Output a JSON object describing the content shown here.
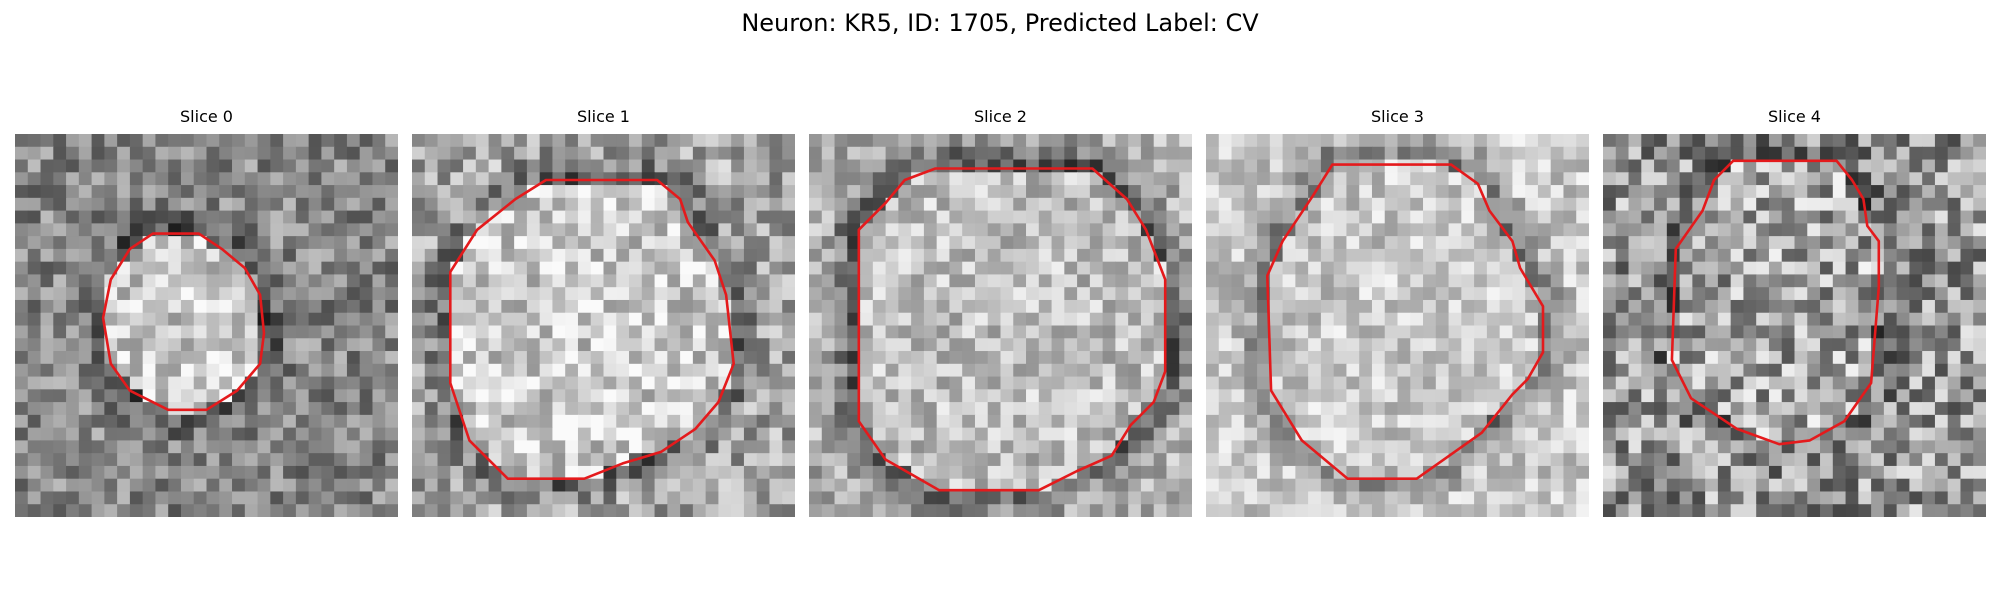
{
  "figure": {
    "title": "Neuron: KR5, ID: 1705, Predicted Label: CV"
  },
  "contour_color": "#e41a1c",
  "slices": [
    {
      "title": "Slice 0",
      "contour": [
        [
          0.36,
          0.26
        ],
        [
          0.48,
          0.26
        ],
        [
          0.54,
          0.3
        ],
        [
          0.6,
          0.35
        ],
        [
          0.64,
          0.42
        ],
        [
          0.65,
          0.52
        ],
        [
          0.64,
          0.6
        ],
        [
          0.58,
          0.67
        ],
        [
          0.5,
          0.72
        ],
        [
          0.4,
          0.72
        ],
        [
          0.3,
          0.67
        ],
        [
          0.25,
          0.6
        ],
        [
          0.23,
          0.48
        ],
        [
          0.25,
          0.38
        ],
        [
          0.3,
          0.3
        ]
      ]
    },
    {
      "title": "Slice 1",
      "contour": [
        [
          0.35,
          0.12
        ],
        [
          0.64,
          0.12
        ],
        [
          0.7,
          0.17
        ],
        [
          0.72,
          0.23
        ],
        [
          0.79,
          0.33
        ],
        [
          0.82,
          0.42
        ],
        [
          0.84,
          0.6
        ],
        [
          0.8,
          0.7
        ],
        [
          0.74,
          0.77
        ],
        [
          0.65,
          0.83
        ],
        [
          0.55,
          0.86
        ],
        [
          0.45,
          0.9
        ],
        [
          0.25,
          0.9
        ],
        [
          0.15,
          0.8
        ],
        [
          0.1,
          0.65
        ],
        [
          0.1,
          0.36
        ],
        [
          0.17,
          0.25
        ],
        [
          0.27,
          0.17
        ]
      ]
    },
    {
      "title": "Slice 2",
      "contour": [
        [
          0.33,
          0.09
        ],
        [
          0.74,
          0.09
        ],
        [
          0.83,
          0.17
        ],
        [
          0.88,
          0.25
        ],
        [
          0.93,
          0.38
        ],
        [
          0.93,
          0.62
        ],
        [
          0.9,
          0.7
        ],
        [
          0.84,
          0.76
        ],
        [
          0.79,
          0.84
        ],
        [
          0.7,
          0.88
        ],
        [
          0.6,
          0.93
        ],
        [
          0.34,
          0.93
        ],
        [
          0.2,
          0.85
        ],
        [
          0.13,
          0.75
        ],
        [
          0.13,
          0.25
        ],
        [
          0.2,
          0.18
        ],
        [
          0.25,
          0.12
        ]
      ]
    },
    {
      "title": "Slice 3",
      "contour": [
        [
          0.33,
          0.08
        ],
        [
          0.64,
          0.08
        ],
        [
          0.71,
          0.13
        ],
        [
          0.74,
          0.2
        ],
        [
          0.8,
          0.28
        ],
        [
          0.82,
          0.35
        ],
        [
          0.88,
          0.45
        ],
        [
          0.88,
          0.57
        ],
        [
          0.84,
          0.64
        ],
        [
          0.8,
          0.68
        ],
        [
          0.72,
          0.78
        ],
        [
          0.55,
          0.9
        ],
        [
          0.37,
          0.9
        ],
        [
          0.25,
          0.8
        ],
        [
          0.17,
          0.67
        ],
        [
          0.16,
          0.37
        ],
        [
          0.2,
          0.28
        ],
        [
          0.28,
          0.16
        ]
      ]
    },
    {
      "title": "Slice 4",
      "contour": [
        [
          0.34,
          0.07
        ],
        [
          0.61,
          0.07
        ],
        [
          0.65,
          0.12
        ],
        [
          0.68,
          0.17
        ],
        [
          0.69,
          0.24
        ],
        [
          0.72,
          0.28
        ],
        [
          0.72,
          0.4
        ],
        [
          0.7,
          0.65
        ],
        [
          0.63,
          0.75
        ],
        [
          0.54,
          0.8
        ],
        [
          0.46,
          0.81
        ],
        [
          0.35,
          0.77
        ],
        [
          0.23,
          0.69
        ],
        [
          0.18,
          0.59
        ],
        [
          0.19,
          0.3
        ],
        [
          0.26,
          0.2
        ],
        [
          0.29,
          0.12
        ]
      ]
    }
  ]
}
